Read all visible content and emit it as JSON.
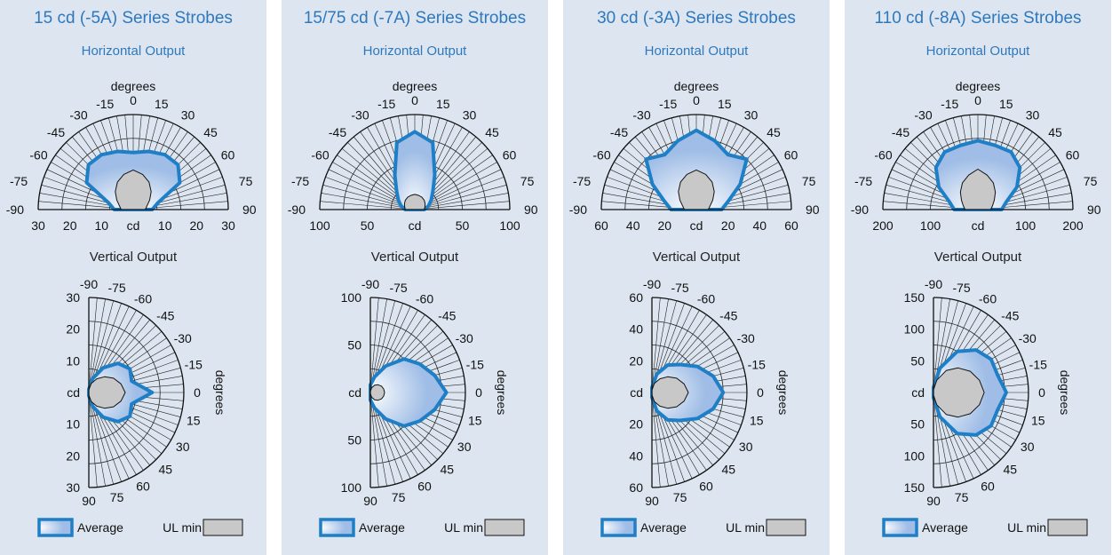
{
  "legend": {
    "average": "Average",
    "ul_min": "UL min"
  },
  "colors": {
    "panel": "#dde6f0",
    "title": "#2e78bd",
    "average_stroke": "#1f7fc6",
    "average_fill_inner": "#ffffff",
    "average_fill_outer": "#9fbde6",
    "ul_min_fill": "#c8c8c8"
  },
  "chart_data": [
    {
      "type": "polar",
      "title": "15 cd (-5A) Series Strobes",
      "horizontal": {
        "subtitle": "Horizontal Output",
        "angle_label": "degrees",
        "unit_label": "cd",
        "angle_ticks": [
          "-90",
          "-75",
          "-60",
          "-45",
          "-30",
          "-15",
          "0",
          "15",
          "30",
          "45",
          "60",
          "75",
          "90"
        ],
        "radial_max": 30,
        "left_tick_labels": [
          "30",
          "20",
          "10"
        ],
        "right_tick_labels": [
          "10",
          "20",
          "30"
        ],
        "ul_min_ticks": [
          "-90",
          "-75",
          "-60",
          "-45",
          "-30",
          "-15",
          "0",
          "15",
          "30",
          "45",
          "60",
          "75",
          "90"
        ],
        "angles": [
          -90,
          -75,
          -60,
          -45,
          -30,
          -15,
          0,
          15,
          30,
          45,
          60,
          75,
          90
        ],
        "average": [
          6,
          8,
          17,
          20,
          20,
          19,
          18,
          19,
          20,
          20,
          17,
          8,
          6
        ],
        "ul_min": [
          3.8,
          4.5,
          6,
          8,
          10,
          11.5,
          12.5,
          11.5,
          10,
          8,
          6,
          4.5,
          3.8
        ]
      },
      "vertical": {
        "subtitle": "Vertical Output",
        "angle_label": "degrees",
        "unit_label": "cd",
        "angle_ticks_top": [
          "-90",
          "-75",
          "-60",
          "-45",
          "-30",
          "-15"
        ],
        "angle_ticks_bottom": [
          "15",
          "30",
          "45",
          "60",
          "75",
          "90"
        ],
        "zero_label": "0",
        "radial_max": 30,
        "top_tick_labels": [
          "30",
          "20",
          "10"
        ],
        "bottom_tick_labels": [
          "10",
          "20",
          "30"
        ],
        "angles": [
          -90,
          -75,
          -60,
          -45,
          -30,
          -15,
          0,
          15,
          30,
          45,
          60,
          75,
          90
        ],
        "average": [
          1,
          4.5,
          9,
          13,
          15,
          14,
          20,
          14,
          15,
          13,
          9,
          4.5,
          1
        ],
        "ul_min": [
          0.8,
          3,
          5,
          7,
          9,
          10.5,
          11.5,
          10.5,
          9,
          7,
          5,
          3,
          0.8
        ]
      }
    },
    {
      "type": "polar",
      "title": "15/75 cd (-7A) Series Strobes",
      "horizontal": {
        "subtitle": "Horizontal Output",
        "angle_label": "degrees",
        "unit_label": "cd",
        "angle_ticks": [
          "-90",
          "-75",
          "-60",
          "-45",
          "-30",
          "-15",
          "0",
          "15",
          "30",
          "45",
          "60",
          "75",
          "90"
        ],
        "radial_max": 100,
        "left_tick_labels": [
          "100",
          "50"
        ],
        "right_tick_labels": [
          "50",
          "100"
        ],
        "angles": [
          -90,
          -75,
          -60,
          -45,
          -30,
          -15,
          0,
          15,
          30,
          45,
          60,
          75,
          90
        ],
        "average": [
          10,
          15,
          20,
          27,
          42,
          73,
          82,
          73,
          42,
          27,
          20,
          15,
          10
        ],
        "ul_min": [
          10,
          11,
          12.5,
          14,
          15,
          15.5,
          16,
          15.5,
          15,
          14,
          12.5,
          11,
          10
        ]
      },
      "vertical": {
        "subtitle": "Vertical Output",
        "angle_label": "degrees",
        "unit_label": "cd",
        "angle_ticks_top": [
          "-90",
          "-75",
          "-60",
          "-45",
          "-30",
          "-15"
        ],
        "angle_ticks_bottom": [
          "15",
          "30",
          "45",
          "60",
          "75",
          "90"
        ],
        "zero_label": "0",
        "radial_max": 100,
        "top_tick_labels": [
          "100",
          "50"
        ],
        "bottom_tick_labels": [
          "50",
          "100"
        ],
        "angles": [
          -90,
          -75,
          -60,
          -45,
          -30,
          -15,
          0,
          15,
          30,
          45,
          60,
          75,
          90
        ],
        "average": [
          8,
          17,
          32,
          50,
          60,
          70,
          80,
          70,
          60,
          50,
          32,
          17,
          8
        ],
        "ul_min": [
          1,
          5,
          9,
          11.5,
          13.5,
          14.5,
          15,
          14.5,
          13.5,
          11.5,
          9,
          5,
          1
        ]
      }
    },
    {
      "type": "polar",
      "title": "30 cd (-3A) Series Strobes",
      "horizontal": {
        "subtitle": "Horizontal Output",
        "angle_label": "degrees",
        "unit_label": "cd",
        "angle_ticks": [
          "-90",
          "-75",
          "-60",
          "-45",
          "-30",
          "-15",
          "0",
          "15",
          "30",
          "45",
          "60",
          "75",
          "90"
        ],
        "radial_max": 60,
        "left_tick_labels": [
          "60",
          "40",
          "20"
        ],
        "right_tick_labels": [
          "20",
          "40",
          "60"
        ],
        "angles": [
          -90,
          -75,
          -60,
          -45,
          -30,
          -15,
          0,
          15,
          30,
          45,
          60,
          75,
          90
        ],
        "average": [
          16,
          21,
          32,
          45,
          40,
          45,
          50,
          45,
          40,
          45,
          32,
          21,
          16
        ],
        "ul_min": [
          7.5,
          9,
          12,
          16,
          20,
          23,
          25,
          23,
          20,
          16,
          12,
          9,
          7.5
        ]
      },
      "vertical": {
        "subtitle": "Vertical Output",
        "angle_label": "degrees",
        "unit_label": "cd",
        "angle_ticks_top": [
          "-90",
          "-75",
          "-60",
          "-45",
          "-30",
          "-15"
        ],
        "angle_ticks_bottom": [
          "15",
          "30",
          "45",
          "60",
          "75",
          "90"
        ],
        "zero_label": "0",
        "radial_max": 60,
        "top_tick_labels": [
          "60",
          "40",
          "20"
        ],
        "bottom_tick_labels": [
          "20",
          "40",
          "60"
        ],
        "angles": [
          -90,
          -75,
          -60,
          -45,
          -30,
          -15,
          0,
          15,
          30,
          45,
          60,
          75,
          90
        ],
        "average": [
          3,
          12,
          20,
          25,
          33,
          40,
          45,
          40,
          33,
          25,
          20,
          12,
          3
        ],
        "ul_min": [
          1.5,
          6,
          10,
          14,
          18,
          21,
          23,
          21,
          18,
          14,
          10,
          6,
          1.5
        ]
      }
    },
    {
      "type": "polar",
      "title": "110 cd (-8A) Series Strobes",
      "horizontal": {
        "subtitle": "Horizontal Output",
        "angle_label": "degrees",
        "unit_label": "cd",
        "angle_ticks": [
          "-90",
          "-75",
          "-60",
          "-45",
          "-30",
          "-15",
          "0",
          "15",
          "30",
          "45",
          "60",
          "75",
          "90"
        ],
        "radial_max": 200,
        "left_tick_labels": [
          "200",
          "100"
        ],
        "right_tick_labels": [
          "100",
          "200"
        ],
        "angles": [
          -90,
          -75,
          -60,
          -45,
          -30,
          -15,
          0,
          15,
          30,
          45,
          60,
          75,
          90
        ],
        "average": [
          50,
          62,
          95,
          125,
          140,
          140,
          145,
          140,
          140,
          125,
          95,
          62,
          50
        ],
        "ul_min": [
          27,
          32,
          40,
          52,
          65,
          75,
          85,
          75,
          65,
          52,
          40,
          32,
          27
        ]
      },
      "vertical": {
        "subtitle": "Vertical Output",
        "angle_label": "degrees",
        "unit_label": "cd",
        "angle_ticks_top": [
          "-90",
          "-75",
          "-60",
          "-45",
          "-30",
          "-15"
        ],
        "angle_ticks_bottom": [
          "15",
          "30",
          "45",
          "60",
          "75",
          "90"
        ],
        "zero_label": "0",
        "radial_max": 150,
        "top_tick_labels": [
          "150",
          "100",
          "50"
        ],
        "bottom_tick_labels": [
          "50",
          "100",
          "150"
        ],
        "angles": [
          -90,
          -75,
          -60,
          -45,
          -30,
          -15,
          0,
          15,
          30,
          45,
          60,
          75,
          90
        ],
        "average": [
          8,
          40,
          75,
          95,
          105,
          105,
          115,
          105,
          105,
          95,
          75,
          40,
          8
        ],
        "ul_min": [
          4,
          20,
          40,
          55,
          67,
          75,
          80,
          75,
          67,
          55,
          40,
          20,
          4
        ]
      }
    }
  ]
}
